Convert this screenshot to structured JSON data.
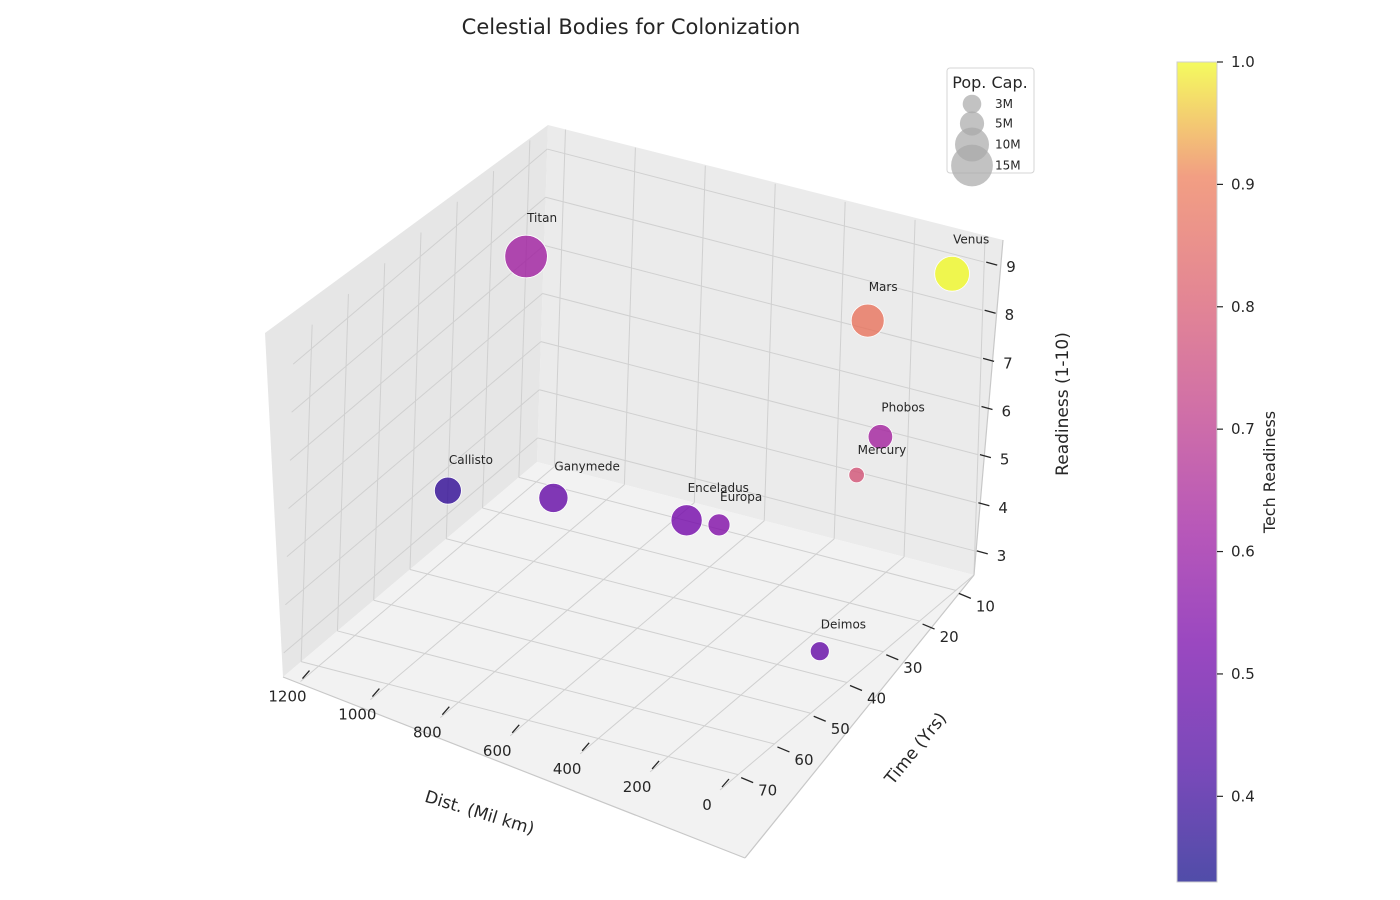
{
  "chart_data": {
    "type": "scatter",
    "projection": "3d",
    "title": "Celestial Bodies for Colonization",
    "xlabel": "Dist. (Mil km)",
    "ylabel": "Time (Yrs)",
    "zlabel": "Readiness (1-10)",
    "xlim": [
      1250,
      0
    ],
    "ylim": [
      5,
      75
    ],
    "zlim": [
      2.5,
      9.5
    ],
    "x_ticks": [
      1200,
      1000,
      800,
      600,
      400,
      200,
      0
    ],
    "y_ticks": [
      10,
      20,
      30,
      40,
      50,
      60,
      70
    ],
    "z_ticks": [
      3,
      4,
      5,
      6,
      7,
      8,
      9
    ],
    "grid": true,
    "points": [
      {
        "label": "Venus",
        "x": 40,
        "y": 10,
        "z": 9,
        "population_millions": 10,
        "tech_readiness": 1.0
      },
      {
        "label": "Mars",
        "x": 225,
        "y": 15,
        "z": 8,
        "population_millions": 9,
        "tech_readiness": 0.88
      },
      {
        "label": "Mercury",
        "x": 92,
        "y": 30,
        "z": 6,
        "population_millions": 2,
        "tech_readiness": 0.78
      },
      {
        "label": "Phobos",
        "x": 78,
        "y": 25,
        "z": 6.5,
        "population_millions": 5,
        "tech_readiness": 0.63
      },
      {
        "label": "Deimos",
        "x": 80,
        "y": 40,
        "z": 3,
        "population_millions": 3,
        "tech_readiness": 0.48
      },
      {
        "label": "Europa",
        "x": 628,
        "y": 15,
        "z": 3,
        "population_millions": 4,
        "tech_readiness": 0.55
      },
      {
        "label": "Enceladus",
        "x": 650,
        "y": 22,
        "z": 3.5,
        "population_millions": 8,
        "tech_readiness": 0.52
      },
      {
        "label": "Titan",
        "x": 1200,
        "y": 15,
        "z": 7.5,
        "population_millions": 15,
        "tech_readiness": 0.62
      },
      {
        "label": "Ganymede",
        "x": 1000,
        "y": 25,
        "z": 3.5,
        "population_millions": 7,
        "tech_readiness": 0.48
      },
      {
        "label": "Callisto",
        "x": 1250,
        "y": 30,
        "z": 3.5,
        "population_millions": 6,
        "tech_readiness": 0.38
      }
    ],
    "size_legend": {
      "title": "Pop. Cap.",
      "placement": "top-right",
      "entries": [
        {
          "label": "3M",
          "value": 3
        },
        {
          "label": "5M",
          "value": 5
        },
        {
          "label": "10M",
          "value": 10
        },
        {
          "label": "15M",
          "value": 15
        }
      ]
    },
    "colorbar": {
      "label": "Tech Readiness",
      "colormap": "plasma",
      "range": [
        0.33,
        1.0
      ],
      "ticks": [
        "0.4",
        "0.5",
        "0.6",
        "0.7",
        "0.8",
        "0.9",
        "1.0"
      ]
    }
  }
}
